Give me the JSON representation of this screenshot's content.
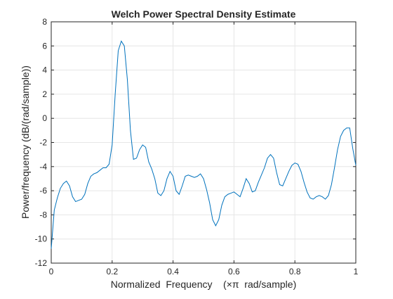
{
  "chart_data": {
    "type": "line",
    "title": "Welch Power Spectral Density Estimate",
    "xlabel": "Normalized  Frequency    (×π  rad/sample)",
    "ylabel": "Power/frequency (dB/(rad/sample))",
    "xlim": [
      0,
      1
    ],
    "ylim": [
      -12,
      8
    ],
    "xticks": [
      0,
      0.2,
      0.4,
      0.6,
      0.8,
      1
    ],
    "xtick_labels": [
      "0",
      "0.2",
      "0.4",
      "0.6",
      "0.8",
      "1"
    ],
    "yticks": [
      -12,
      -10,
      -8,
      -6,
      -4,
      -2,
      0,
      2,
      4,
      6,
      8
    ],
    "ytick_labels": [
      "-12",
      "-10",
      "-8",
      "-6",
      "-4",
      "-2",
      "0",
      "2",
      "4",
      "6",
      "8"
    ],
    "grid": true,
    "line_color": "#0072bd",
    "series": [
      {
        "x": [
          0,
          0.01,
          0.02,
          0.03,
          0.04,
          0.05,
          0.06,
          0.07,
          0.08,
          0.09,
          0.1,
          0.11,
          0.12,
          0.13,
          0.14,
          0.15,
          0.16,
          0.17,
          0.18,
          0.19,
          0.2,
          0.21,
          0.22,
          0.23,
          0.24,
          0.25,
          0.26,
          0.27,
          0.28,
          0.29,
          0.3,
          0.31,
          0.32,
          0.33,
          0.34,
          0.35,
          0.36,
          0.37,
          0.38,
          0.39,
          0.4,
          0.41,
          0.42,
          0.43,
          0.44,
          0.45,
          0.46,
          0.47,
          0.48,
          0.49,
          0.5,
          0.51,
          0.52,
          0.53,
          0.54,
          0.55,
          0.56,
          0.57,
          0.58,
          0.59,
          0.6,
          0.61,
          0.62,
          0.63,
          0.64,
          0.65,
          0.66,
          0.67,
          0.68,
          0.69,
          0.7,
          0.71,
          0.72,
          0.73,
          0.74,
          0.75,
          0.76,
          0.77,
          0.78,
          0.79,
          0.8,
          0.81,
          0.82,
          0.83,
          0.84,
          0.85,
          0.86,
          0.87,
          0.88,
          0.89,
          0.9,
          0.91,
          0.92,
          0.93,
          0.94,
          0.95,
          0.96,
          0.97,
          0.98,
          0.99,
          1
        ],
        "y": [
          -10.8,
          -7.6,
          -6.6,
          -5.8,
          -5.4,
          -5.2,
          -5.6,
          -6.5,
          -6.9,
          -6.8,
          -6.7,
          -6.3,
          -5.4,
          -4.8,
          -4.6,
          -4.5,
          -4.3,
          -4.1,
          -4.1,
          -3.8,
          -2.2,
          2.0,
          5.6,
          6.4,
          6.0,
          3.2,
          -1.0,
          -3.4,
          -3.3,
          -2.6,
          -2.2,
          -2.4,
          -3.6,
          -4.2,
          -5.0,
          -6.2,
          -6.4,
          -6.0,
          -5.0,
          -4.4,
          -4.8,
          -6.0,
          -6.3,
          -5.6,
          -4.8,
          -4.7,
          -4.8,
          -4.9,
          -4.8,
          -4.6,
          -5.0,
          -5.9,
          -7.0,
          -8.4,
          -8.9,
          -8.4,
          -7.2,
          -6.5,
          -6.3,
          -6.2,
          -6.1,
          -6.3,
          -6.5,
          -5.8,
          -5.0,
          -5.4,
          -6.1,
          -6.0,
          -5.3,
          -4.7,
          -4.1,
          -3.3,
          -3.0,
          -3.3,
          -4.5,
          -5.5,
          -5.6,
          -5.0,
          -4.4,
          -3.9,
          -3.7,
          -3.8,
          -4.4,
          -5.3,
          -6.1,
          -6.6,
          -6.7,
          -6.5,
          -6.4,
          -6.5,
          -6.7,
          -6.4,
          -5.5,
          -4.1,
          -2.6,
          -1.5,
          -1.0,
          -0.8,
          -0.8,
          -2.5,
          -3.9
        ]
      }
    ]
  }
}
